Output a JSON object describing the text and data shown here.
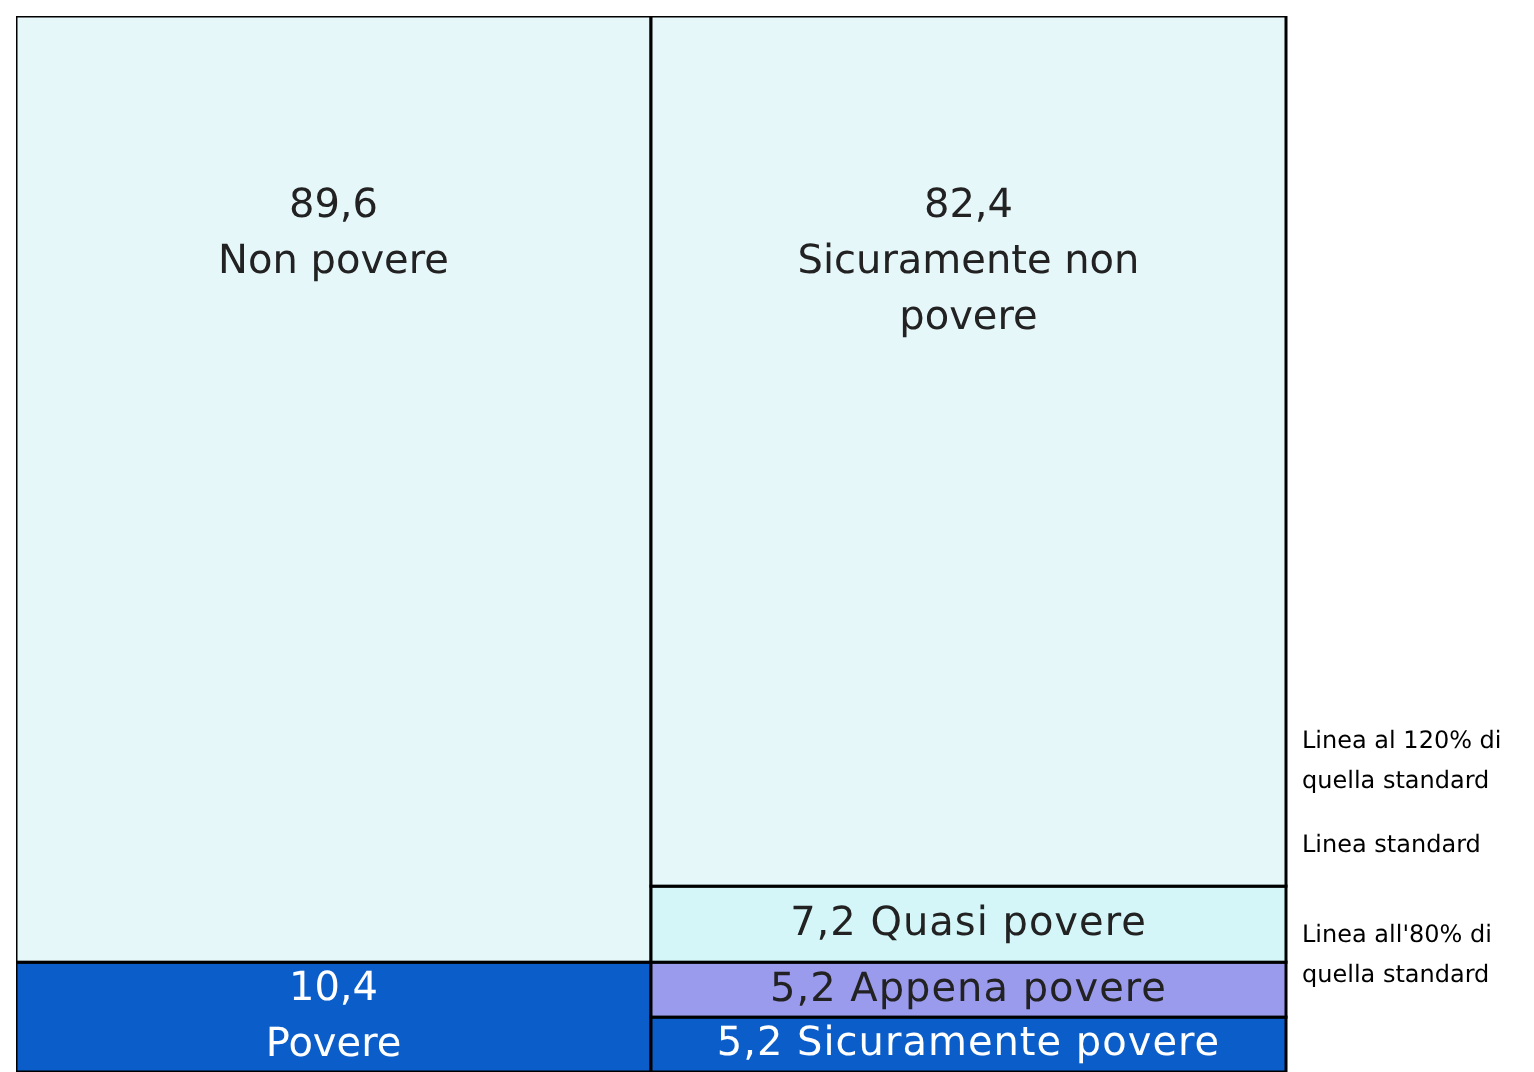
{
  "chart_data": {
    "type": "bar",
    "stacked": true,
    "categories": [
      null,
      null
    ],
    "ylim": [
      0,
      100
    ],
    "series": [
      {
        "name": "Povere",
        "color": "#0b5ec9",
        "values": [
          10.4,
          null
        ],
        "value_labels": [
          "10,4",
          null
        ]
      },
      {
        "name": "Non povere",
        "color": "#e6f7fa",
        "values": [
          89.6,
          null
        ],
        "value_labels": [
          "89,6",
          null
        ]
      },
      {
        "name": "Sicuramente povere",
        "color": "#0b5ec9",
        "values": [
          null,
          5.2
        ],
        "value_labels": [
          null,
          "5,2"
        ]
      },
      {
        "name": "Appena povere",
        "color": "#9b9bee",
        "values": [
          null,
          5.2
        ],
        "value_labels": [
          null,
          "5,2"
        ]
      },
      {
        "name": "Quasi povere",
        "color": "#d4f6f9",
        "values": [
          null,
          7.2
        ],
        "value_labels": [
          null,
          "7,2"
        ]
      },
      {
        "name": "Sicuramente non povere",
        "color": "#e6f7fa",
        "values": [
          null,
          82.4
        ],
        "value_labels": [
          null,
          "82,4"
        ]
      }
    ],
    "annotations": [
      "Linea al 120% di quella standard",
      "Linea standard",
      "Linea all'80% di quella standard"
    ]
  }
}
